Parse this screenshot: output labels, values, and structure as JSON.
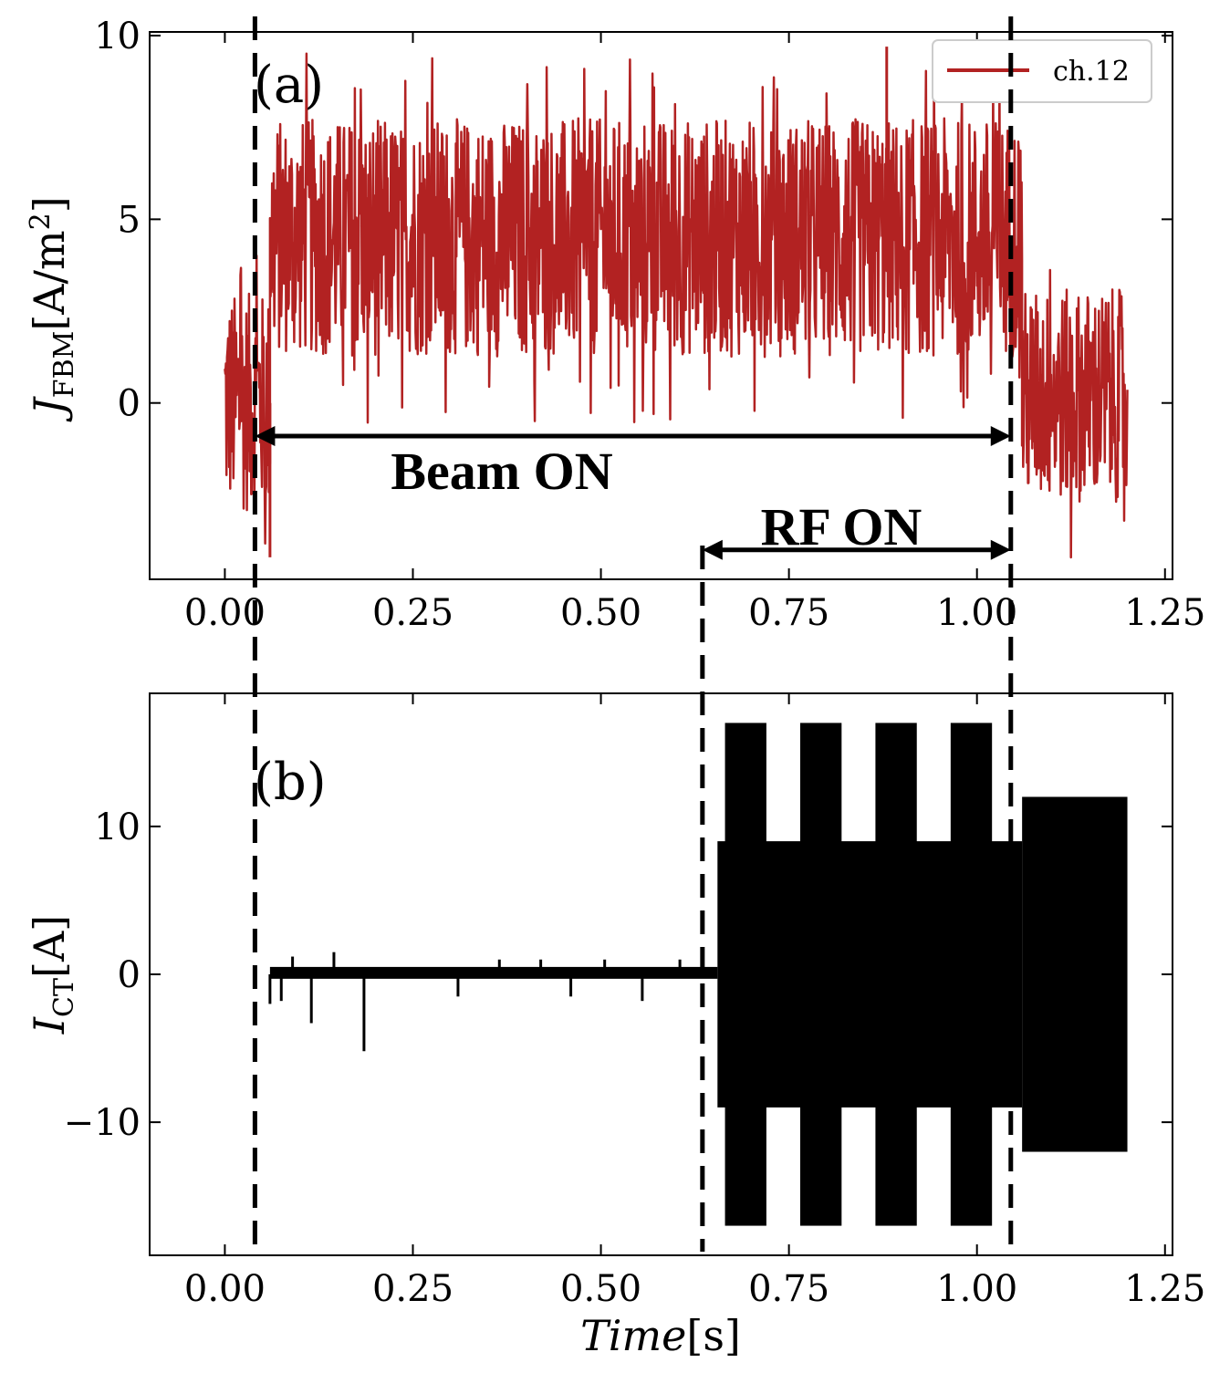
{
  "chart_data": [
    {
      "panel_label": "(a)",
      "type": "line",
      "ylabel": {
        "symbol": "J",
        "subscript": "FBM",
        "units": "[A/m",
        "units_sup": "2",
        "units_end": "]"
      },
      "xlim": [
        -0.1,
        1.26
      ],
      "ylim": [
        -4.8,
        10.1
      ],
      "x_ticks": [
        "0.00",
        "0.25",
        "0.50",
        "0.75",
        "1.00",
        "1.25"
      ],
      "x_tick_values": [
        0.0,
        0.25,
        0.5,
        0.75,
        1.0,
        1.25
      ],
      "y_ticks": [
        "0",
        "5",
        "10"
      ],
      "y_tick_values": [
        0,
        5,
        10
      ],
      "legend": {
        "label": "ch.12",
        "color": "#b22222",
        "position": "top-right"
      },
      "series": [
        {
          "name": "ch.12",
          "color": "#b22222",
          "segments": [
            {
              "t_start": 0.0,
              "t_end": 0.06,
              "mean": 0.0,
              "range": [
                -2.5,
                3.5
              ]
            },
            {
              "t_start": 0.06,
              "t_end": 1.06,
              "mean": 4.5,
              "range": [
                1.0,
                7.5
              ]
            },
            {
              "t_start": 1.06,
              "t_end": 1.2,
              "mean": 0.2,
              "range": [
                -3.0,
                2.8
              ]
            }
          ],
          "peak_max": 9.7,
          "peak_min": -4.2
        }
      ],
      "annotations": [
        {
          "text": "Beam ON",
          "x_start": 0.04,
          "x_end": 1.045,
          "y": -0.9
        },
        {
          "text": "RF ON",
          "x_start": 0.635,
          "x_end": 1.045,
          "y": -4.0
        }
      ]
    },
    {
      "panel_label": "(b)",
      "type": "line",
      "ylabel": {
        "symbol": "I",
        "subscript": "CT",
        "units": "[A]"
      },
      "xlabel": {
        "symbol": "Time",
        "units": "[s]"
      },
      "xlim": [
        -0.1,
        1.26
      ],
      "ylim": [
        -19,
        19
      ],
      "x_ticks": [
        "0.00",
        "0.25",
        "0.50",
        "0.75",
        "1.00",
        "1.25"
      ],
      "x_tick_values": [
        0.0,
        0.25,
        0.5,
        0.75,
        1.0,
        1.25
      ],
      "y_ticks": [
        "−10",
        "0",
        "10"
      ],
      "y_tick_values": [
        -10,
        0,
        10
      ],
      "series": [
        {
          "name": "I_CT",
          "color": "#000000",
          "baseline": {
            "t_start": 0.06,
            "t_end": 0.655,
            "low": -0.3,
            "high": 0.5
          },
          "spikes": [
            {
              "t": 0.06,
              "v": -2.0
            },
            {
              "t": 0.075,
              "v": -1.8
            },
            {
              "t": 0.09,
              "v": 1.2
            },
            {
              "t": 0.115,
              "v": -3.3
            },
            {
              "t": 0.145,
              "v": 1.5
            },
            {
              "t": 0.185,
              "v": -5.2
            },
            {
              "t": 0.31,
              "v": -1.5
            },
            {
              "t": 0.365,
              "v": 1.0
            },
            {
              "t": 0.42,
              "v": 1.0
            },
            {
              "t": 0.46,
              "v": -1.5
            },
            {
              "t": 0.505,
              "v": 1.0
            },
            {
              "t": 0.555,
              "v": -1.8
            },
            {
              "t": 0.605,
              "v": 1.0
            }
          ],
          "rf_on": {
            "t_start": 0.655,
            "t_end": 1.06,
            "amplitude": 9.0
          },
          "rf_bursts": [
            {
              "t_start": 0.665,
              "t_end": 0.72,
              "amplitude": 17.0
            },
            {
              "t_start": 0.765,
              "t_end": 0.82,
              "amplitude": 17.0
            },
            {
              "t_start": 0.865,
              "t_end": 0.92,
              "amplitude": 17.0
            },
            {
              "t_start": 0.965,
              "t_end": 1.02,
              "amplitude": 17.0
            }
          ],
          "post": {
            "t_start": 1.06,
            "t_end": 1.2,
            "amplitude": 12.0
          }
        }
      ]
    }
  ],
  "vlines": [
    {
      "t": 0.04,
      "spans": "both"
    },
    {
      "t": 0.635,
      "spans": "middle-and-b"
    },
    {
      "t": 1.045,
      "spans": "both"
    }
  ]
}
